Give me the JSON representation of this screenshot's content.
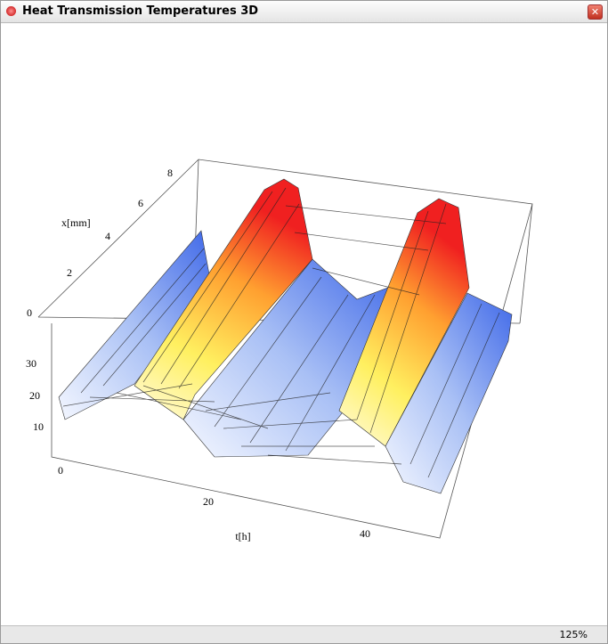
{
  "window": {
    "title": "Heat Transmission Temperatures 3D"
  },
  "plot": {
    "x_axis": {
      "label": "x[mm]",
      "ticks": [
        0,
        2,
        4,
        6,
        8
      ]
    },
    "t_axis": {
      "label": "t[h]",
      "ticks": [
        0,
        20,
        40
      ]
    },
    "temperature_axis": {
      "ticks": [
        10,
        20,
        30
      ]
    }
  },
  "status_bar": {
    "zoom": "125%"
  }
}
